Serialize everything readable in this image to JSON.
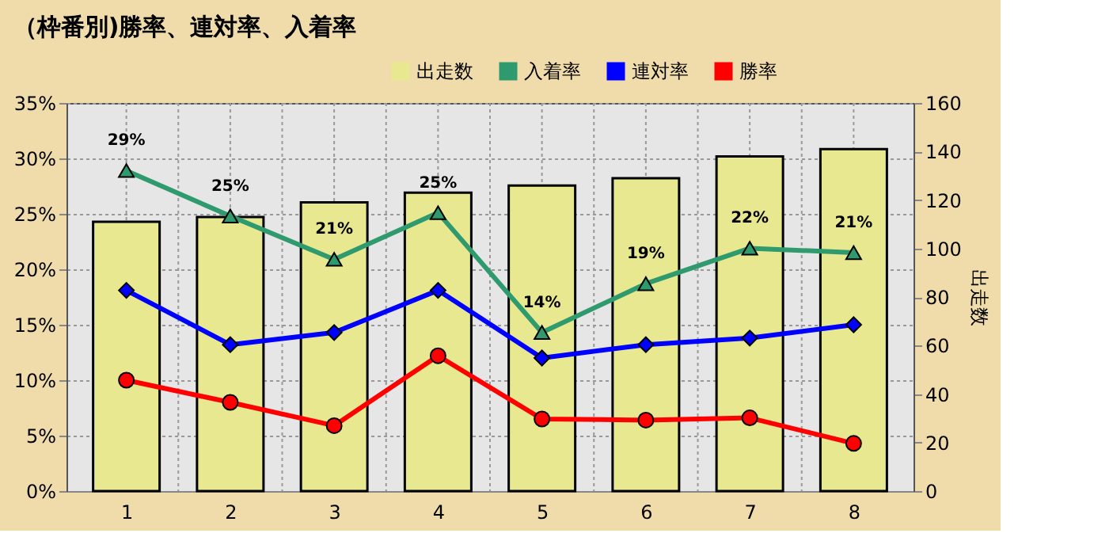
{
  "chart_data": {
    "type": "line",
    "title": "（枠番別)勝率、連対率、入着率",
    "y2label": "出走数",
    "categories": [
      "1",
      "2",
      "3",
      "4",
      "5",
      "6",
      "7",
      "8"
    ],
    "series": [
      {
        "name": "出走数",
        "type": "bar",
        "axis": "y2",
        "color": "#e8e890",
        "values": [
          111,
          113,
          119,
          123,
          126,
          129,
          138,
          141
        ]
      },
      {
        "name": "入着率",
        "color": "#2e9a6e",
        "marker": "triangle",
        "values": [
          28.9,
          24.8,
          20.9,
          25.1,
          14.3,
          18.7,
          21.9,
          21.5
        ],
        "value_labels": [
          "29%",
          "25%",
          "21%",
          "25%",
          "14%",
          "19%",
          "22%",
          "21%"
        ]
      },
      {
        "name": "連対率",
        "color": "#0000ff",
        "marker": "diamond",
        "values": [
          18.1,
          13.2,
          14.3,
          18.1,
          12.0,
          13.2,
          13.8,
          15.0
        ]
      },
      {
        "name": "勝率",
        "color": "#ff0000",
        "marker": "circle",
        "values": [
          10.0,
          8.0,
          5.9,
          12.2,
          6.5,
          6.4,
          6.6,
          4.3
        ]
      }
    ],
    "ylim": [
      0,
      35
    ],
    "yticks": [
      {
        "value": 0,
        "label": "0%"
      },
      {
        "value": 5,
        "label": "5%"
      },
      {
        "value": 10,
        "label": "10%"
      },
      {
        "value": 15,
        "label": "15%"
      },
      {
        "value": 20,
        "label": "20%"
      },
      {
        "value": 25,
        "label": "25%"
      },
      {
        "value": 30,
        "label": "30%"
      },
      {
        "value": 35,
        "label": "35%"
      }
    ],
    "y2lim": [
      0,
      160
    ],
    "y2ticks": [
      0,
      20,
      40,
      60,
      80,
      100,
      120,
      140,
      160
    ],
    "grid": true,
    "legend": "top right",
    "line_style": "solid"
  }
}
